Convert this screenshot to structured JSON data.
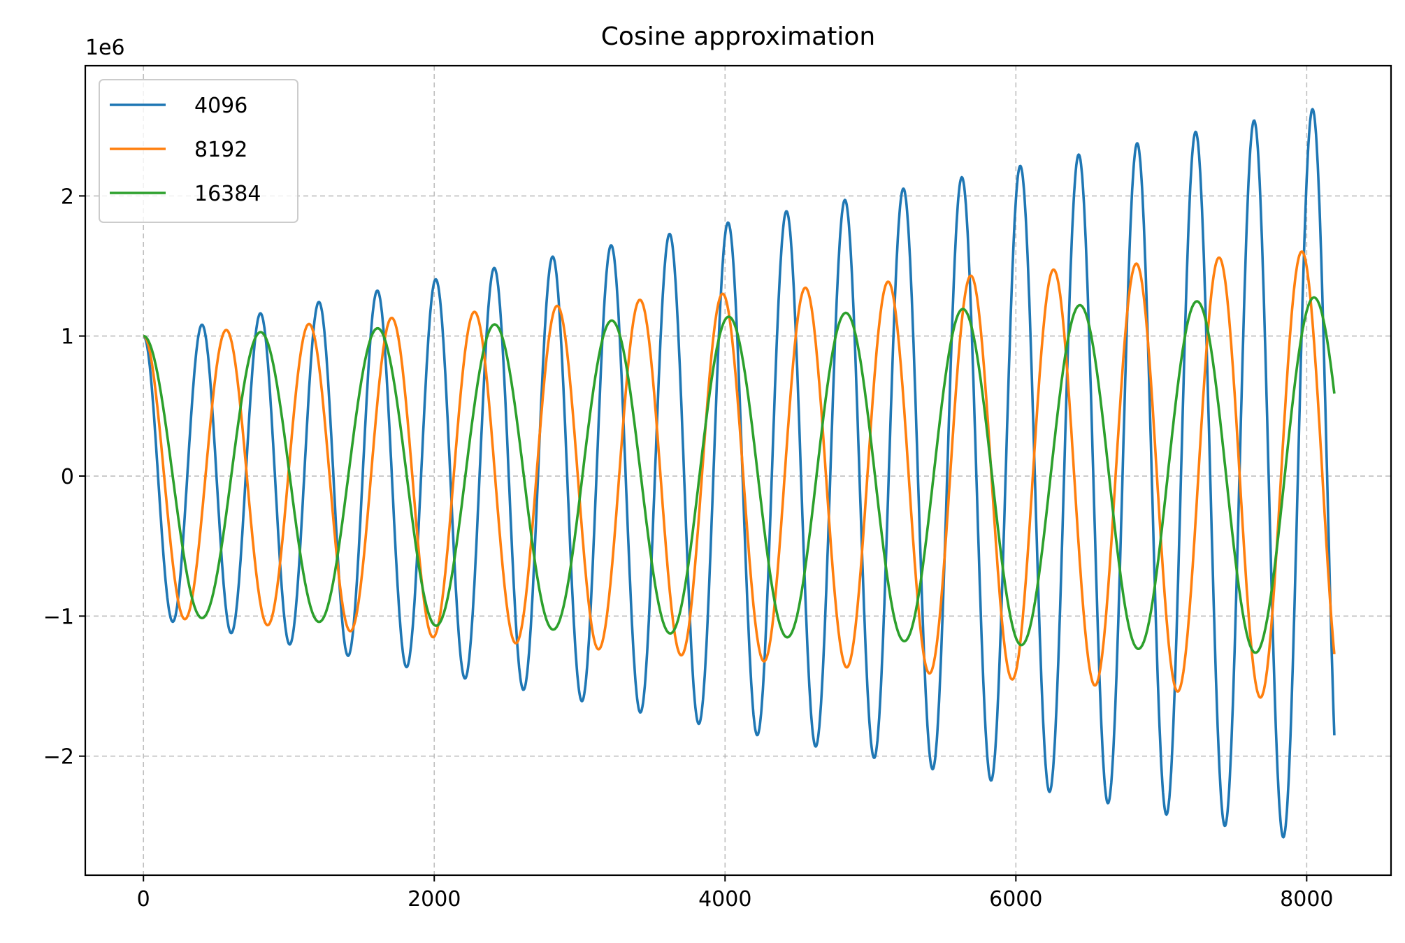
{
  "chart_data": {
    "type": "line",
    "title": "Cosine approximation",
    "xlabel": "",
    "ylabel": "",
    "y_offset_label": "1e6",
    "y_scale": 1000000,
    "xlim": [
      -400,
      8580
    ],
    "ylim": [
      -2.85,
      2.93
    ],
    "x_ticks": [
      0,
      2000,
      4000,
      6000,
      8000
    ],
    "x_tick_labels": [
      "0",
      "2000",
      "4000",
      "6000",
      "8000"
    ],
    "y_ticks": [
      -2,
      -1,
      0,
      1,
      2
    ],
    "y_tick_labels": [
      "−2",
      "−1",
      "0",
      "1",
      "2"
    ],
    "grid": true,
    "legend_position": "upper-left",
    "x_range": [
      0,
      8190
    ],
    "series": [
      {
        "name": "4096",
        "color": "#1f77b4",
        "period": 402,
        "amplitude_start": 1.0,
        "amplitude_end": 2.65,
        "final_value": -1.83
      },
      {
        "name": "8192",
        "color": "#ff7f0e",
        "period": 569,
        "amplitude_start": 1.0,
        "amplitude_end": 1.62,
        "final_value": -1.35
      },
      {
        "name": "16384",
        "color": "#2ca02c",
        "period": 805,
        "amplitude_start": 1.0,
        "amplitude_end": 1.28,
        "final_value": 0.5
      }
    ]
  }
}
